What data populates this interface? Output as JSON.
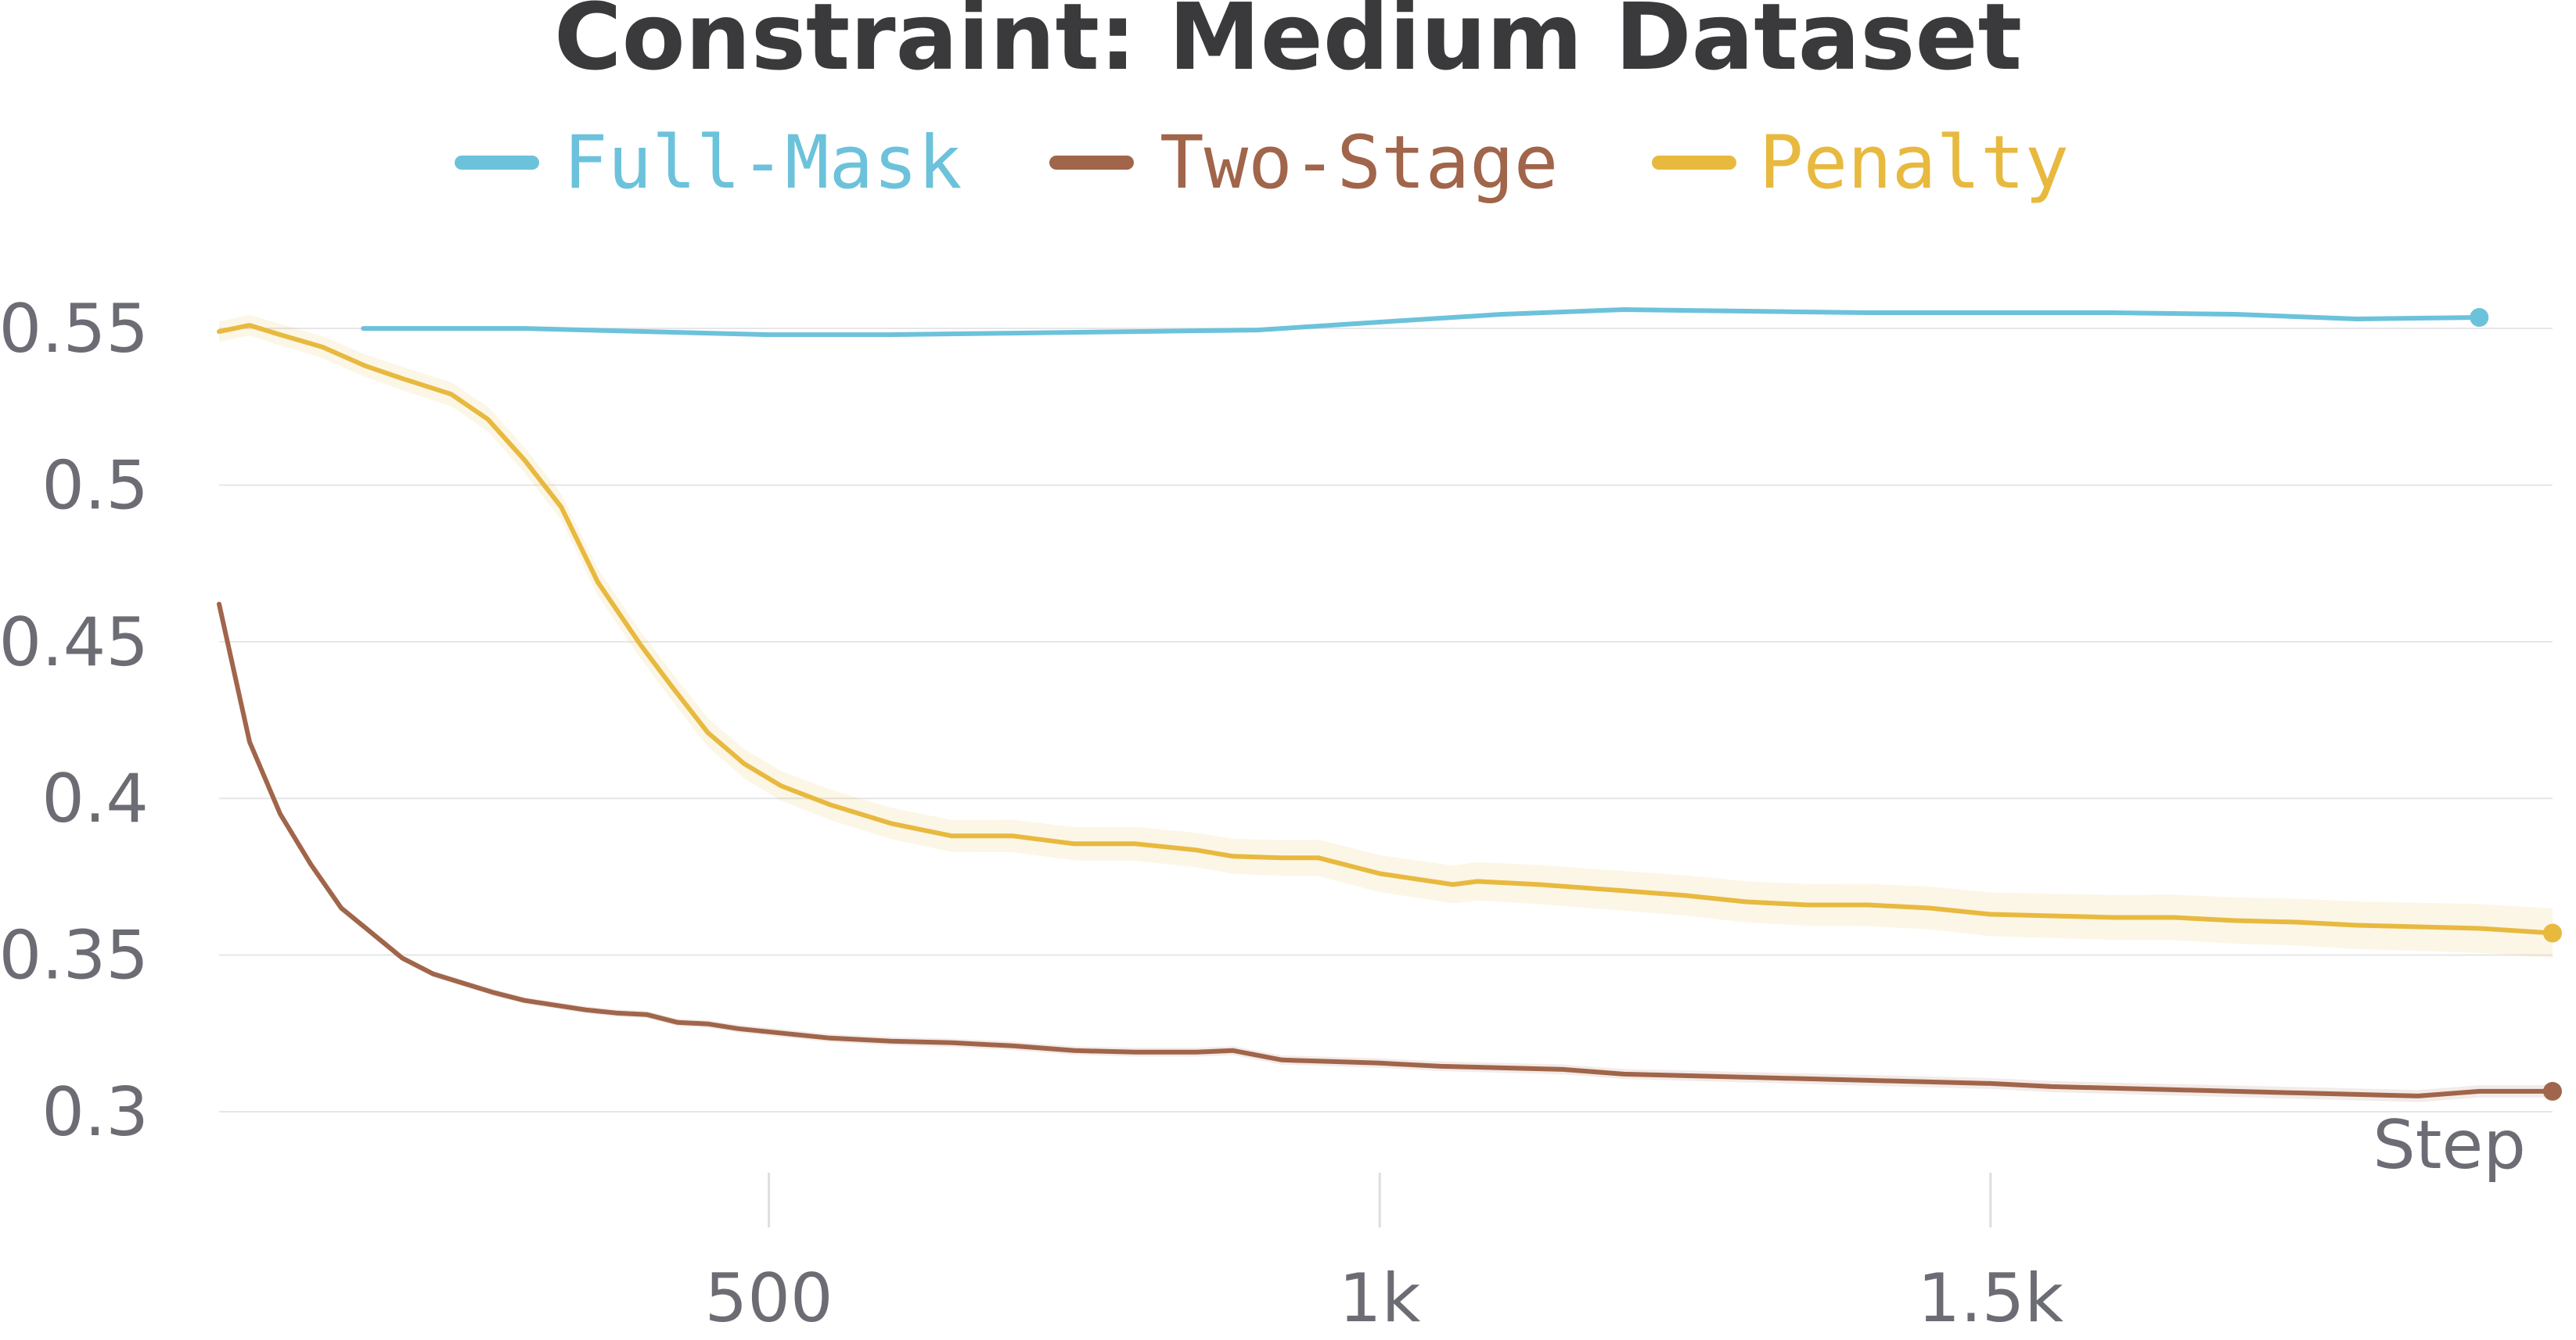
{
  "chart_data": {
    "type": "line",
    "title": "Constraint: Medium Dataset",
    "xlabel": "Step",
    "ylabel": "",
    "xlim": [
      50,
      1960
    ],
    "ylim": [
      0.295,
      0.558
    ],
    "x_ticks": [
      500,
      1000,
      1500
    ],
    "x_tick_labels": [
      "500",
      "1k",
      "1.5k"
    ],
    "y_ticks": [
      0.3,
      0.35,
      0.4,
      0.45,
      0.5,
      0.55
    ],
    "y_tick_labels": [
      "0.3",
      "0.35",
      "0.4",
      "0.45",
      "0.5",
      "0.55"
    ],
    "grid": true,
    "legend": {
      "position": "top-center",
      "entries": [
        "Full-Mask",
        "Two-Stage",
        "Penalty"
      ]
    },
    "series": [
      {
        "name": "Full-Mask",
        "color": "#6cc2db",
        "x": [
          168,
          300,
          400,
          500,
          600,
          700,
          800,
          900,
          1000,
          1100,
          1200,
          1300,
          1400,
          1500,
          1600,
          1700,
          1800,
          1900
        ],
        "y": [
          0.55,
          0.55,
          0.549,
          0.548,
          0.548,
          0.5485,
          0.549,
          0.5495,
          0.552,
          0.5545,
          0.556,
          0.5555,
          0.555,
          0.555,
          0.555,
          0.5545,
          0.553,
          0.5535
        ],
        "band": 0.0
      },
      {
        "name": "Two-Stage",
        "color": "#a0654a",
        "x": [
          50,
          75,
          100,
          125,
          150,
          175,
          200,
          225,
          250,
          275,
          300,
          325,
          350,
          375,
          400,
          425,
          450,
          475,
          500,
          550,
          600,
          650,
          700,
          750,
          800,
          850,
          880,
          920,
          960,
          1000,
          1050,
          1100,
          1150,
          1200,
          1250,
          1300,
          1350,
          1400,
          1450,
          1500,
          1550,
          1600,
          1650,
          1700,
          1750,
          1800,
          1850,
          1900,
          1960
        ],
        "y": [
          0.462,
          0.418,
          0.395,
          0.379,
          0.365,
          0.357,
          0.349,
          0.344,
          0.341,
          0.338,
          0.3355,
          0.334,
          0.3325,
          0.3315,
          0.331,
          0.3285,
          0.328,
          0.3265,
          0.3255,
          0.3235,
          0.3225,
          0.322,
          0.321,
          0.3195,
          0.319,
          0.319,
          0.3195,
          0.3165,
          0.316,
          0.3155,
          0.3145,
          0.314,
          0.3135,
          0.312,
          0.3115,
          0.311,
          0.3105,
          0.31,
          0.3095,
          0.309,
          0.308,
          0.3075,
          0.307,
          0.3065,
          0.306,
          0.3055,
          0.305,
          0.3065,
          0.3065
        ],
        "band": 0.002
      },
      {
        "name": "Penalty",
        "color": "#e8b93f",
        "x": [
          50,
          75,
          100,
          135,
          170,
          200,
          240,
          270,
          300,
          330,
          360,
          395,
          420,
          450,
          480,
          510,
          550,
          600,
          650,
          700,
          750,
          800,
          850,
          880,
          920,
          950,
          1000,
          1060,
          1080,
          1130,
          1200,
          1250,
          1300,
          1350,
          1400,
          1450,
          1500,
          1550,
          1600,
          1650,
          1700,
          1750,
          1800,
          1850,
          1900,
          1960
        ],
        "y": [
          0.549,
          0.551,
          0.548,
          0.544,
          0.538,
          0.534,
          0.529,
          0.521,
          0.508,
          0.493,
          0.469,
          0.449,
          0.436,
          0.421,
          0.411,
          0.404,
          0.398,
          0.392,
          0.388,
          0.388,
          0.3855,
          0.3855,
          0.3835,
          0.3815,
          0.381,
          0.381,
          0.376,
          0.3725,
          0.3735,
          0.3725,
          0.3705,
          0.369,
          0.367,
          0.366,
          0.366,
          0.365,
          0.363,
          0.3625,
          0.362,
          0.362,
          0.361,
          0.3605,
          0.3595,
          0.359,
          0.3585,
          0.357
        ],
        "band": 0.008
      }
    ]
  }
}
